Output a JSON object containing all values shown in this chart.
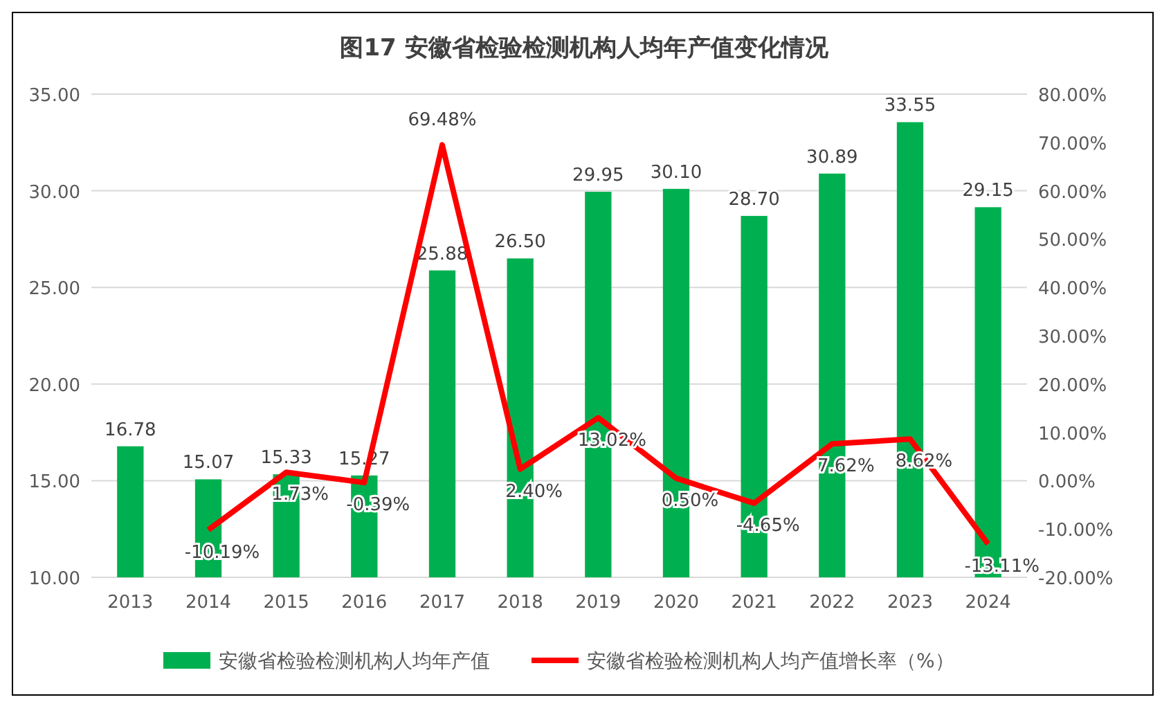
{
  "chart_data": {
    "type": "bar",
    "title": "图17 安徽省检验检测机构人均年产值变化情况",
    "categories": [
      "2013",
      "2014",
      "2015",
      "2016",
      "2017",
      "2018",
      "2019",
      "2020",
      "2021",
      "2022",
      "2023",
      "2024"
    ],
    "series": [
      {
        "name": "安徽省检验检测机构人均年产值",
        "color": "#00b050",
        "values": [
          16.78,
          15.07,
          15.33,
          15.27,
          25.88,
          26.5,
          29.95,
          30.1,
          28.7,
          30.89,
          33.55,
          29.15
        ],
        "value_labels": [
          "16.78",
          "15.07",
          "15.33",
          "15.27",
          "25.88",
          "26.50",
          "29.95",
          "30.10",
          "28.70",
          "30.89",
          "33.55",
          "29.15"
        ]
      },
      {
        "name": "安徽省检验检测机构人均产值增长率（%）",
        "type": "line",
        "axis": "y2",
        "color": "#ff0000",
        "values": [
          null,
          -10.19,
          1.73,
          -0.39,
          69.48,
          2.4,
          13.02,
          0.5,
          -4.65,
          7.62,
          8.62,
          -13.11
        ],
        "value_labels": [
          null,
          "-10.19%",
          "1.73%",
          "-0.39%",
          "69.48%",
          "2.40%",
          "13.02%",
          "0.50%",
          "-4.65%",
          "7.62%",
          "8.62%",
          "-13.11%"
        ]
      }
    ],
    "ylim": [
      10,
      35
    ],
    "yticks": [
      {
        "value": 10,
        "label": "10.00"
      },
      {
        "value": 15,
        "label": "15.00"
      },
      {
        "value": 20,
        "label": "20.00"
      },
      {
        "value": 25,
        "label": "25.00"
      },
      {
        "value": 30,
        "label": "30.00"
      },
      {
        "value": 35,
        "label": "35.00"
      }
    ],
    "y2lim": [
      -20,
      80
    ],
    "y2ticks": [
      {
        "value": -20,
        "label": "-20.00%"
      },
      {
        "value": -10,
        "label": "-10.00%"
      },
      {
        "value": 0,
        "label": "0.00%"
      },
      {
        "value": 10,
        "label": "10.00%"
      },
      {
        "value": 20,
        "label": "20.00%"
      },
      {
        "value": 30,
        "label": "30.00%"
      },
      {
        "value": 40,
        "label": "40.00%"
      },
      {
        "value": 50,
        "label": "50.00%"
      },
      {
        "value": 60,
        "label": "60.00%"
      },
      {
        "value": 70,
        "label": "70.00%"
      },
      {
        "value": 80,
        "label": "80.00%"
      }
    ],
    "grid": "y",
    "legend": "bottom",
    "marker": "none",
    "line_style": "solid"
  }
}
